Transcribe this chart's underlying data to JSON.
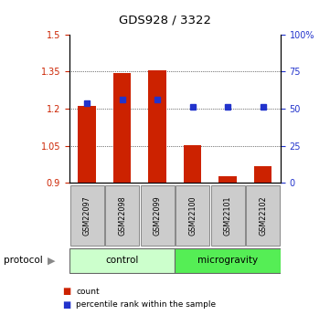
{
  "title": "GDS928 / 3322",
  "samples": [
    "GSM22097",
    "GSM22098",
    "GSM22099",
    "GSM22100",
    "GSM22101",
    "GSM22102"
  ],
  "red_bar_values": [
    1.21,
    1.345,
    1.357,
    1.052,
    0.928,
    0.968
  ],
  "blue_dot_values": [
    54,
    56,
    56,
    51,
    51,
    51
  ],
  "red_bar_base": 0.9,
  "ylim_left": [
    0.9,
    1.5
  ],
  "ylim_right": [
    0,
    100
  ],
  "yticks_left": [
    0.9,
    1.05,
    1.2,
    1.35,
    1.5
  ],
  "yticks_right": [
    0,
    25,
    50,
    75,
    100
  ],
  "ytick_labels_right": [
    "0",
    "25",
    "50",
    "75",
    "100%"
  ],
  "groups": [
    {
      "label": "control",
      "start": 0,
      "end": 3,
      "color": "#ccffcc"
    },
    {
      "label": "microgravity",
      "start": 3,
      "end": 6,
      "color": "#55ee55"
    }
  ],
  "bar_color": "#cc2200",
  "dot_color": "#2233cc",
  "protocol_label": "protocol",
  "legend_items": [
    {
      "color": "#cc2200",
      "label": "count"
    },
    {
      "color": "#2233cc",
      "label": "percentile rank within the sample"
    }
  ],
  "tick_label_color_left": "#cc2200",
  "tick_label_color_right": "#2233cc",
  "sample_box_color": "#cccccc",
  "bar_width": 0.5
}
